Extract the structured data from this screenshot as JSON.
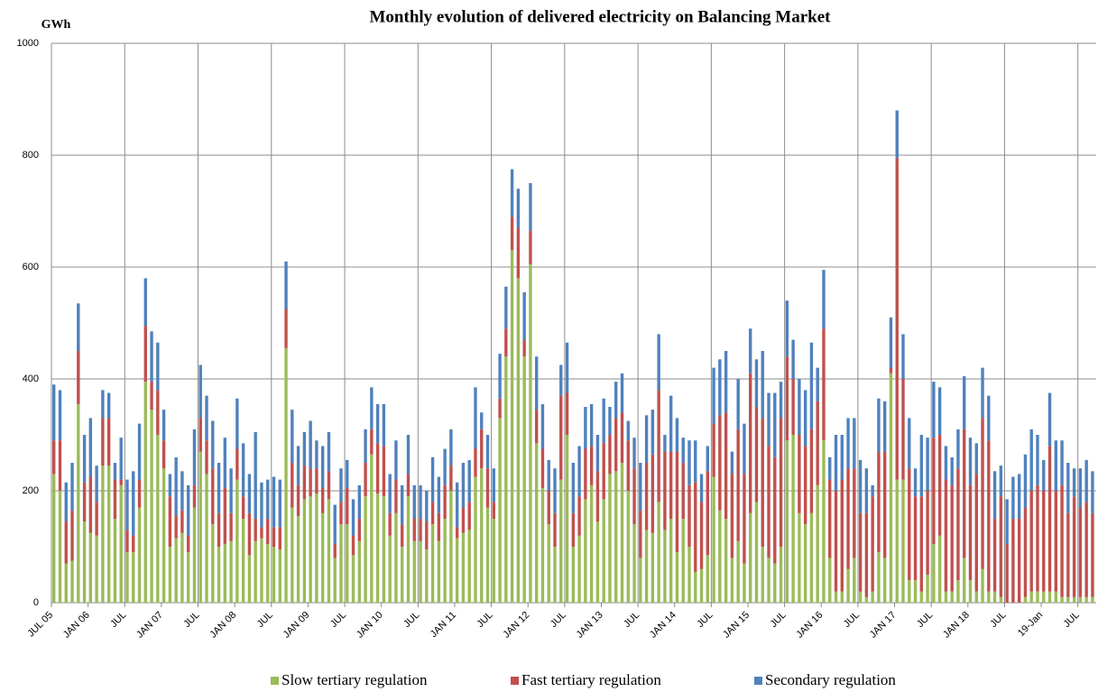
{
  "chart_data": {
    "type": "stacked_bar",
    "title": "Monthly evolution of delivered electricity on Balancing Market",
    "y_label": "GWh",
    "categories": [
      "JUL 05",
      null,
      null,
      null,
      null,
      null,
      "JAN 06",
      null,
      null,
      null,
      null,
      null,
      "JUL",
      null,
      null,
      null,
      null,
      null,
      "JAN 07",
      null,
      null,
      null,
      null,
      null,
      "JUL",
      null,
      null,
      null,
      null,
      null,
      "JAN 08",
      null,
      null,
      null,
      null,
      null,
      "JUL",
      null,
      null,
      null,
      null,
      null,
      "JAN 09",
      null,
      null,
      null,
      null,
      null,
      "JUL",
      null,
      null,
      null,
      null,
      null,
      "JAN 10",
      null,
      null,
      null,
      null,
      null,
      "JUL",
      null,
      null,
      null,
      null,
      null,
      "JAN 11",
      null,
      null,
      null,
      null,
      null,
      "JUL",
      null,
      null,
      null,
      null,
      null,
      "JAN 12",
      null,
      null,
      null,
      null,
      null,
      "JUL",
      null,
      null,
      null,
      null,
      null,
      "JAN 13",
      null,
      null,
      null,
      null,
      null,
      "JUL",
      null,
      null,
      null,
      null,
      null,
      "JAN 14",
      null,
      null,
      null,
      null,
      null,
      "JUL",
      null,
      null,
      null,
      null,
      null,
      "JAN 15",
      null,
      null,
      null,
      null,
      null,
      "JUL",
      null,
      null,
      null,
      null,
      null,
      "JAN 16",
      null,
      null,
      null,
      null,
      null,
      "JUL",
      null,
      null,
      null,
      null,
      null,
      "JAN 17",
      null,
      null,
      null,
      null,
      null,
      "JUL",
      null,
      null,
      null,
      null,
      null,
      "JAN 18",
      null,
      null,
      null,
      null,
      null,
      "JUL",
      null,
      null,
      null,
      null,
      null,
      "19-Jan",
      null,
      null,
      null,
      null,
      null,
      "JUL",
      null,
      null
    ],
    "series": [
      {
        "name": "Slow tertiary regulation",
        "color": "#9bbb59",
        "values": [
          230,
          200,
          70,
          75,
          355,
          145,
          125,
          120,
          245,
          245,
          150,
          210,
          90,
          90,
          170,
          395,
          345,
          300,
          240,
          100,
          115,
          125,
          90,
          170,
          270,
          230,
          140,
          100,
          105,
          110,
          220,
          150,
          85,
          110,
          115,
          105,
          100,
          95,
          455,
          170,
          155,
          185,
          190,
          195,
          160,
          185,
          80,
          140,
          140,
          85,
          110,
          190,
          265,
          195,
          190,
          120,
          160,
          100,
          190,
          110,
          110,
          95,
          140,
          110,
          150,
          200,
          115,
          125,
          130,
          225,
          240,
          170,
          150,
          330,
          440,
          630,
          580,
          440,
          605,
          285,
          205,
          140,
          100,
          220,
          300,
          100,
          120,
          185,
          210,
          145,
          185,
          230,
          235,
          250,
          200,
          140,
          80,
          130,
          125,
          180,
          130,
          150,
          90,
          150,
          100,
          55,
          60,
          85,
          225,
          165,
          150,
          80,
          110,
          70,
          160,
          180,
          100,
          80,
          70,
          100,
          290,
          300,
          160,
          140,
          160,
          210,
          290,
          80,
          20,
          20,
          60,
          80,
          20,
          10,
          20,
          90,
          80,
          410,
          220,
          220,
          40,
          40,
          20,
          50,
          105,
          120,
          20,
          20,
          40,
          80,
          40,
          20,
          60,
          20,
          20,
          10,
          0,
          0,
          0,
          10,
          20,
          20,
          20,
          20,
          20,
          10,
          10,
          10,
          10,
          10,
          10
        ]
      },
      {
        "name": "Fast tertiary regulation",
        "color": "#c0504d",
        "values": [
          60,
          90,
          75,
          90,
          95,
          70,
          100,
          60,
          85,
          85,
          70,
          10,
          40,
          30,
          50,
          100,
          50,
          80,
          50,
          90,
          40,
          40,
          30,
          40,
          60,
          60,
          100,
          60,
          100,
          50,
          55,
          40,
          75,
          40,
          20,
          45,
          35,
          40,
          70,
          80,
          55,
          60,
          50,
          45,
          45,
          50,
          25,
          40,
          65,
          35,
          40,
          60,
          45,
          90,
          90,
          40,
          60,
          40,
          40,
          40,
          40,
          50,
          40,
          50,
          60,
          45,
          20,
          45,
          50,
          50,
          70,
          70,
          30,
          35,
          50,
          60,
          90,
          30,
          60,
          60,
          70,
          60,
          60,
          150,
          75,
          60,
          70,
          90,
          70,
          90,
          100,
          70,
          95,
          90,
          90,
          100,
          85,
          120,
          140,
          200,
          140,
          120,
          180,
          100,
          110,
          160,
          120,
          150,
          95,
          170,
          190,
          150,
          200,
          160,
          250,
          170,
          230,
          200,
          190,
          230,
          150,
          100,
          140,
          140,
          150,
          150,
          200,
          140,
          180,
          200,
          180,
          160,
          140,
          150,
          170,
          180,
          190,
          10,
          575,
          180,
          200,
          150,
          170,
          150,
          190,
          180,
          200,
          190,
          200,
          230,
          170,
          210,
          270,
          270,
          130,
          180,
          105,
          150,
          150,
          160,
          180,
          190,
          180,
          260,
          180,
          200,
          150,
          180,
          160,
          170,
          150
        ]
      },
      {
        "name": "Secondary regulation",
        "color": "#4f81bd",
        "values": [
          100,
          90,
          70,
          85,
          85,
          85,
          105,
          65,
          50,
          45,
          30,
          75,
          90,
          115,
          100,
          85,
          90,
          85,
          55,
          40,
          105,
          70,
          90,
          100,
          95,
          80,
          85,
          90,
          90,
          80,
          90,
          95,
          70,
          155,
          80,
          70,
          90,
          85,
          85,
          95,
          70,
          60,
          85,
          50,
          75,
          70,
          70,
          60,
          50,
          65,
          60,
          60,
          75,
          70,
          75,
          70,
          70,
          70,
          70,
          60,
          60,
          55,
          80,
          65,
          65,
          65,
          80,
          80,
          75,
          110,
          30,
          60,
          60,
          80,
          75,
          85,
          70,
          85,
          85,
          95,
          80,
          55,
          80,
          55,
          90,
          90,
          90,
          75,
          75,
          65,
          80,
          50,
          65,
          70,
          35,
          55,
          85,
          85,
          80,
          100,
          30,
          100,
          60,
          45,
          80,
          75,
          50,
          45,
          100,
          100,
          110,
          40,
          90,
          90,
          80,
          85,
          120,
          95,
          115,
          65,
          100,
          70,
          100,
          100,
          155,
          60,
          105,
          40,
          100,
          80,
          90,
          90,
          95,
          80,
          20,
          95,
          90,
          90,
          85,
          80,
          90,
          50,
          110,
          95,
          100,
          85,
          60,
          50,
          70,
          95,
          85,
          55,
          90,
          80,
          85,
          55,
          80,
          75,
          80,
          95,
          110,
          90,
          55,
          95,
          90,
          80,
          90,
          50,
          70,
          75,
          75
        ]
      }
    ],
    "ylim": [
      0,
      1000
    ],
    "yticks": [
      0,
      200,
      400,
      600,
      800,
      1000
    ],
    "grid": true,
    "legend": "bottom"
  }
}
